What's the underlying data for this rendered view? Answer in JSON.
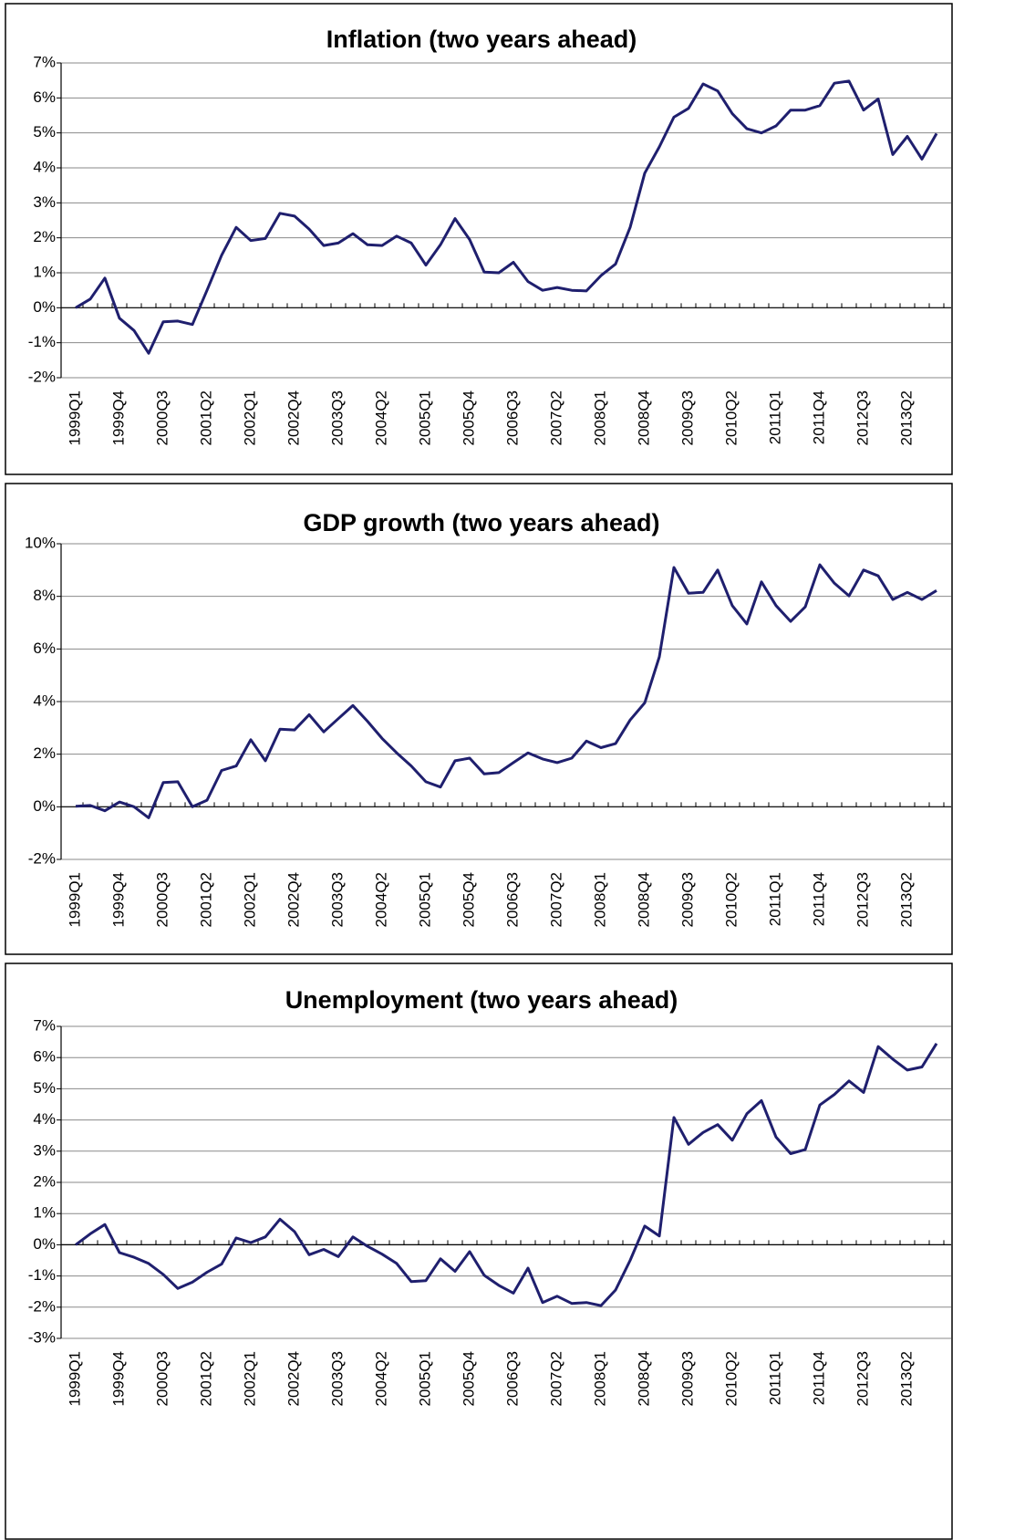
{
  "chart_data": [
    {
      "type": "line",
      "title": "Inflation (two years ahead)",
      "color": "#1f1f6e",
      "grid": true,
      "categories": [
        "1999Q1",
        null,
        null,
        "1999Q4",
        null,
        null,
        "2000Q3",
        null,
        null,
        "2001Q2",
        null,
        null,
        "2002Q1",
        null,
        null,
        "2002Q4",
        null,
        null,
        "2003Q3",
        null,
        null,
        "2004Q2",
        null,
        null,
        "2005Q1",
        null,
        null,
        "2005Q4",
        null,
        null,
        "2006Q3",
        null,
        null,
        "2007Q2",
        null,
        null,
        "2008Q1",
        null,
        null,
        "2008Q4",
        null,
        null,
        "2009Q3",
        null,
        null,
        "2010Q2",
        null,
        null,
        "2011Q1",
        null,
        null,
        "2011Q4",
        null,
        null,
        "2012Q3",
        null,
        null,
        "2013Q2",
        null,
        null
      ],
      "values": [
        0.0,
        0.25,
        0.85,
        -0.3,
        -0.65,
        -1.3,
        -0.4,
        -0.38,
        -0.48,
        0.5,
        1.5,
        2.3,
        1.92,
        1.98,
        2.7,
        2.62,
        2.25,
        1.78,
        1.85,
        2.12,
        1.8,
        1.78,
        2.05,
        1.85,
        1.22,
        1.8,
        2.55,
        1.95,
        1.02,
        1.0,
        1.3,
        0.75,
        0.5,
        0.58,
        0.5,
        0.48,
        0.92,
        1.25,
        2.3,
        3.85,
        4.6,
        5.45,
        5.7,
        6.4,
        6.2,
        5.55,
        5.12,
        5.0,
        5.2,
        5.65,
        5.65,
        5.78,
        6.42,
        6.48,
        5.65,
        5.97,
        4.38,
        4.9,
        4.25,
        4.98
      ],
      "ylim": [
        -2,
        7
      ],
      "yticks": [
        {
          "value": -2,
          "label": "-2%"
        },
        {
          "value": -1,
          "label": "-1%"
        },
        {
          "value": 0,
          "label": "0%"
        },
        {
          "value": 1,
          "label": "1%"
        },
        {
          "value": 2,
          "label": "2%"
        },
        {
          "value": 3,
          "label": "3%"
        },
        {
          "value": 4,
          "label": "4%"
        },
        {
          "value": 5,
          "label": "5%"
        },
        {
          "value": 6,
          "label": "6%"
        },
        {
          "value": 7,
          "label": "7%"
        }
      ]
    },
    {
      "type": "line",
      "title": "GDP growth (two years ahead)",
      "color": "#1f1f6e",
      "grid": true,
      "categories": [
        "1999Q1",
        null,
        null,
        "1999Q4",
        null,
        null,
        "2000Q3",
        null,
        null,
        "2001Q2",
        null,
        null,
        "2002Q1",
        null,
        null,
        "2002Q4",
        null,
        null,
        "2003Q3",
        null,
        null,
        "2004Q2",
        null,
        null,
        "2005Q1",
        null,
        null,
        "2005Q4",
        null,
        null,
        "2006Q3",
        null,
        null,
        "2007Q2",
        null,
        null,
        "2008Q1",
        null,
        null,
        "2008Q4",
        null,
        null,
        "2009Q3",
        null,
        null,
        "2010Q2",
        null,
        null,
        "2011Q1",
        null,
        null,
        "2011Q4",
        null,
        null,
        "2012Q3",
        null,
        null,
        "2013Q2",
        null,
        null
      ],
      "values": [
        0.02,
        0.05,
        -0.15,
        0.18,
        0.0,
        -0.42,
        0.92,
        0.95,
        0.0,
        0.25,
        1.38,
        1.55,
        2.55,
        1.75,
        2.95,
        2.92,
        3.5,
        2.85,
        3.35,
        3.85,
        3.25,
        2.6,
        2.05,
        1.55,
        0.95,
        0.75,
        1.75,
        1.85,
        1.25,
        1.3,
        1.68,
        2.05,
        1.82,
        1.68,
        1.85,
        2.5,
        2.25,
        2.4,
        3.3,
        3.95,
        5.7,
        9.1,
        8.12,
        8.15,
        9.0,
        7.65,
        6.95,
        8.55,
        7.65,
        7.05,
        7.6,
        9.2,
        8.5,
        8.02,
        9.0,
        8.78,
        7.88,
        8.15,
        7.88,
        8.22
      ],
      "ylim": [
        -2,
        10
      ],
      "yticks": [
        {
          "value": -2,
          "label": "-2%"
        },
        {
          "value": 0,
          "label": "0%"
        },
        {
          "value": 2,
          "label": "2%"
        },
        {
          "value": 4,
          "label": "4%"
        },
        {
          "value": 6,
          "label": "6%"
        },
        {
          "value": 8,
          "label": "8%"
        },
        {
          "value": 10,
          "label": "10%"
        }
      ]
    },
    {
      "type": "line",
      "title": "Unemployment (two years ahead)",
      "color": "#1f1f6e",
      "grid": true,
      "categories": [
        "1999Q1",
        null,
        null,
        "1999Q4",
        null,
        null,
        "2000Q3",
        null,
        null,
        "2001Q2",
        null,
        null,
        "2002Q1",
        null,
        null,
        "2002Q4",
        null,
        null,
        "2003Q3",
        null,
        null,
        "2004Q2",
        null,
        null,
        "2005Q1",
        null,
        null,
        "2005Q4",
        null,
        null,
        "2006Q3",
        null,
        null,
        "2007Q2",
        null,
        null,
        "2008Q1",
        null,
        null,
        "2008Q4",
        null,
        null,
        "2009Q3",
        null,
        null,
        "2010Q2",
        null,
        null,
        "2011Q1",
        null,
        null,
        "2011Q4",
        null,
        null,
        "2012Q3",
        null,
        null,
        "2013Q2",
        null,
        null
      ],
      "values": [
        0.0,
        0.35,
        0.65,
        -0.25,
        -0.4,
        -0.6,
        -0.95,
        -1.4,
        -1.2,
        -0.88,
        -0.62,
        0.22,
        0.07,
        0.25,
        0.82,
        0.42,
        -0.32,
        -0.15,
        -0.38,
        0.25,
        -0.05,
        -0.3,
        -0.6,
        -1.18,
        -1.15,
        -0.45,
        -0.85,
        -0.22,
        -0.98,
        -1.3,
        -1.55,
        -0.75,
        -1.85,
        -1.65,
        -1.88,
        -1.85,
        -1.95,
        -1.45,
        -0.5,
        0.6,
        0.28,
        4.08,
        3.22,
        3.6,
        3.85,
        3.35,
        4.2,
        4.62,
        3.45,
        2.92,
        3.05,
        4.48,
        4.82,
        5.25,
        4.88,
        6.35,
        5.95,
        5.6,
        5.7,
        6.45
      ],
      "ylim": [
        -3,
        7
      ],
      "yticks": [
        {
          "value": -3,
          "label": "-3%"
        },
        {
          "value": -2,
          "label": "-2%"
        },
        {
          "value": -1,
          "label": "-1%"
        },
        {
          "value": 0,
          "label": "0%"
        },
        {
          "value": 1,
          "label": "1%"
        },
        {
          "value": 2,
          "label": "2%"
        },
        {
          "value": 3,
          "label": "3%"
        },
        {
          "value": 4,
          "label": "4%"
        },
        {
          "value": 5,
          "label": "5%"
        },
        {
          "value": 6,
          "label": "6%"
        },
        {
          "value": 7,
          "label": "7%"
        }
      ]
    }
  ]
}
